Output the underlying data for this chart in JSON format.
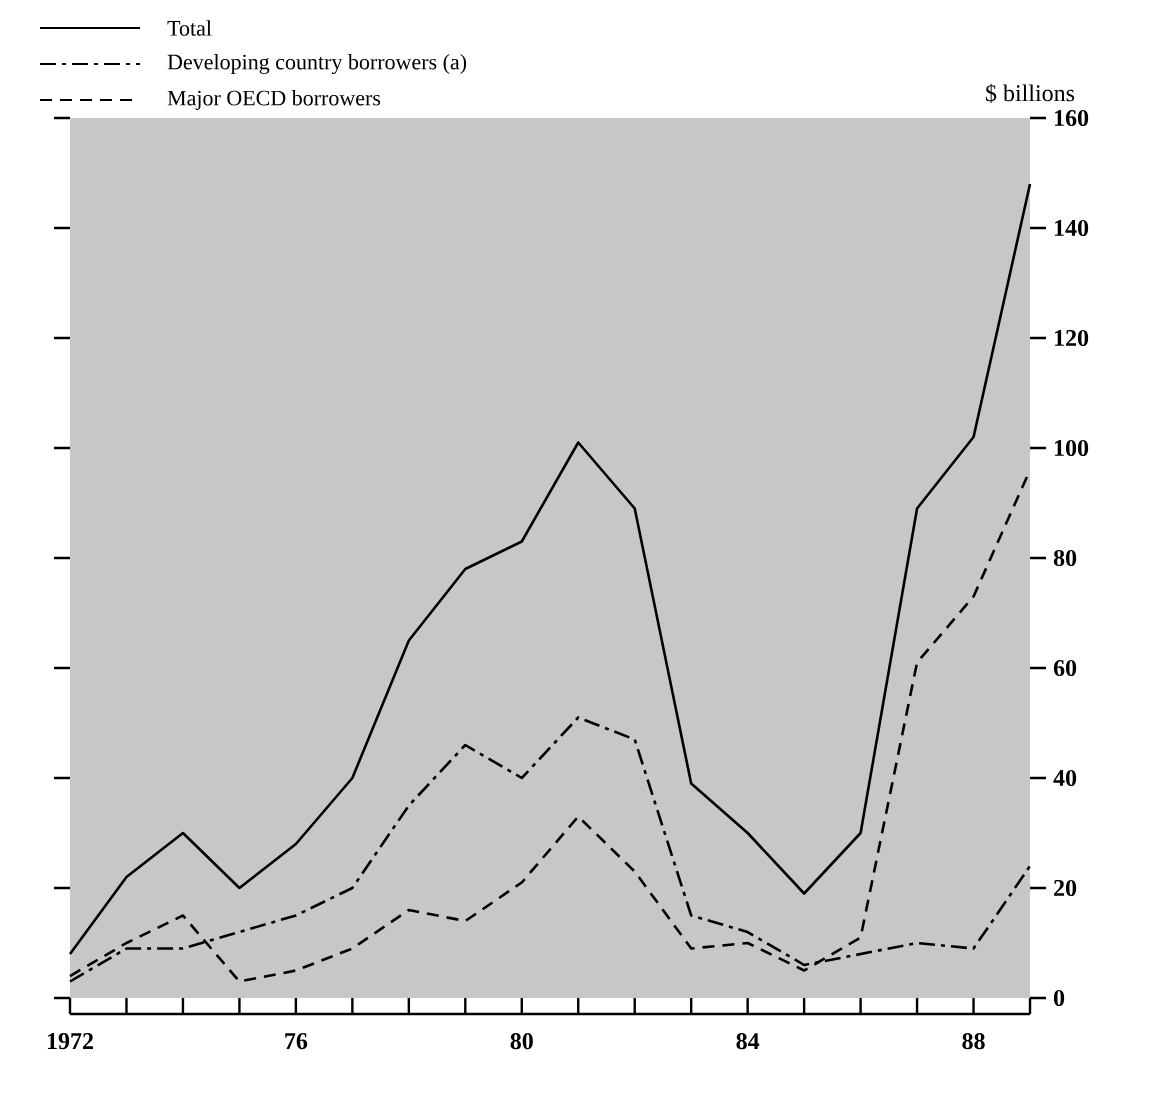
{
  "chart_data": {
    "type": "line",
    "x": [
      1972,
      1973,
      1974,
      1975,
      1976,
      1977,
      1978,
      1979,
      1980,
      1981,
      1982,
      1983,
      1984,
      1985,
      1986,
      1987,
      1988,
      1989
    ],
    "series": [
      {
        "name": "Total",
        "color": "#000000",
        "line_style": "solid",
        "values": [
          8,
          22,
          30,
          20,
          28,
          40,
          65,
          78,
          83,
          101,
          89,
          39,
          30,
          19,
          30,
          89,
          102,
          148
        ]
      },
      {
        "name": "Developing country borrowers (a)",
        "color": "#000000",
        "line_style": "dashdot",
        "values": [
          3,
          9,
          9,
          12,
          15,
          20,
          35,
          46,
          40,
          51,
          47,
          15,
          12,
          6,
          8,
          10,
          9,
          24
        ]
      },
      {
        "name": "Major OECD borrowers",
        "color": "#000000",
        "line_style": "dashed",
        "values": [
          4,
          10,
          15,
          3,
          5,
          9,
          16,
          14,
          21,
          33,
          23,
          9,
          10,
          5,
          11,
          61,
          73,
          96
        ]
      }
    ],
    "ylabel": "$ billions",
    "xlim": [
      1972,
      1989
    ],
    "xticks": [
      {
        "value": 1972,
        "label": "1972"
      },
      {
        "value": 1973,
        "label": null
      },
      {
        "value": 1974,
        "label": null
      },
      {
        "value": 1975,
        "label": null
      },
      {
        "value": 1976,
        "label": "76"
      },
      {
        "value": 1977,
        "label": null
      },
      {
        "value": 1978,
        "label": null
      },
      {
        "value": 1979,
        "label": null
      },
      {
        "value": 1980,
        "label": "80"
      },
      {
        "value": 1981,
        "label": null
      },
      {
        "value": 1982,
        "label": null
      },
      {
        "value": 1983,
        "label": null
      },
      {
        "value": 1984,
        "label": "84"
      },
      {
        "value": 1985,
        "label": null
      },
      {
        "value": 1986,
        "label": null
      },
      {
        "value": 1987,
        "label": null
      },
      {
        "value": 1988,
        "label": "88"
      },
      {
        "value": 1989,
        "label": null
      }
    ],
    "ylim": [
      0,
      160
    ],
    "yticks": [
      0,
      20,
      40,
      60,
      80,
      100,
      120,
      140,
      160
    ],
    "legend": "top left",
    "grid": false,
    "marker": "none"
  }
}
